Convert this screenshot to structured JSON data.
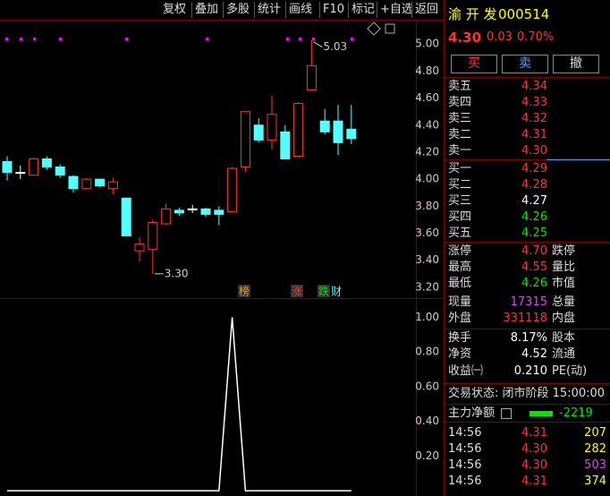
{
  "toolbar": [
    "复权",
    "叠加",
    "多股",
    "统计",
    "画线",
    "F10",
    "标记",
    "+自选",
    "返回"
  ],
  "chart_data": [
    {
      "type": "candlestick",
      "open": [
        4.13,
        4.05,
        4.03,
        4.15,
        4.09,
        4.02,
        3.93,
        4.0,
        3.93,
        3.86,
        3.47,
        3.48,
        3.67,
        3.77,
        3.78,
        3.78,
        3.77,
        3.76,
        4.09,
        4.4,
        4.29,
        4.35,
        4.17,
        4.66,
        4.43,
        4.43,
        4.37
      ],
      "high": [
        4.17,
        4.1,
        4.16,
        4.17,
        4.11,
        4.03,
        4.01,
        4.0,
        4.01,
        3.86,
        3.57,
        3.7,
        3.82,
        3.79,
        3.81,
        3.79,
        3.8,
        4.09,
        4.5,
        4.45,
        4.62,
        4.4,
        4.57,
        5.03,
        4.52,
        4.55,
        4.55
      ],
      "low": [
        3.99,
        4.0,
        4.03,
        4.07,
        4.01,
        3.9,
        3.92,
        3.94,
        3.89,
        3.58,
        3.39,
        3.3,
        3.66,
        3.73,
        3.75,
        3.72,
        3.66,
        3.75,
        4.05,
        4.27,
        4.22,
        4.15,
        4.16,
        4.66,
        4.33,
        4.18,
        4.26
      ],
      "close": [
        4.05,
        4.05,
        4.15,
        4.09,
        4.03,
        3.93,
        4.0,
        3.95,
        3.98,
        3.58,
        3.52,
        3.68,
        3.78,
        3.75,
        3.78,
        3.74,
        3.74,
        4.08,
        4.5,
        4.29,
        4.48,
        4.15,
        4.56,
        4.84,
        4.35,
        4.27,
        4.3
      ],
      "up_color": "#ff3232",
      "down_color": "#54ffff",
      "ylim": [
        3.12,
        5.18
      ],
      "yticks": [
        {
          "value": 5,
          "label": "5.00"
        },
        {
          "value": 4.8,
          "label": "4.80"
        },
        {
          "value": 4.6,
          "label": "4.60"
        },
        {
          "value": 4.4,
          "label": "4.40"
        },
        {
          "value": 4.2,
          "label": "4.20"
        },
        {
          "value": 4,
          "label": "4.00"
        },
        {
          "value": 3.8,
          "label": "3.80"
        },
        {
          "value": 3.6,
          "label": "3.60"
        },
        {
          "value": 3.4,
          "label": "3.40"
        },
        {
          "value": 3.2,
          "label": "3.20"
        }
      ],
      "annotations": [
        "5.03",
        "3.30"
      ],
      "markers": [
        "榜",
        "涨",
        "跌",
        "财"
      ]
    },
    {
      "type": "line",
      "color": "#ffffff",
      "values": [
        0,
        0,
        0,
        0,
        0,
        0,
        0,
        0,
        0,
        0,
        0,
        0,
        0,
        0,
        0,
        0,
        0,
        1,
        0,
        0,
        0,
        0,
        0,
        0,
        0,
        0,
        0
      ],
      "ylim": [
        -0.03,
        1.1
      ],
      "yticks": [
        {
          "value": 1,
          "label": "1.00"
        },
        {
          "value": 0.8,
          "label": "0.80"
        },
        {
          "value": 0.6,
          "label": "0.60"
        },
        {
          "value": 0.4,
          "label": "0.40"
        },
        {
          "value": 0.2,
          "label": "0.20"
        }
      ]
    }
  ],
  "quote": {
    "name": "渝 开 发",
    "code": "000514",
    "price": "4.30",
    "change": "0.03",
    "pct": "0.70%"
  },
  "actions": [
    "买",
    "卖",
    "撤"
  ],
  "order_book": [
    {
      "label": "卖五",
      "value": "4.34",
      "color": "#ff3232"
    },
    {
      "label": "卖四",
      "value": "4.33",
      "color": "#ff3232"
    },
    {
      "label": "卖三",
      "value": "4.32",
      "color": "#ff3232"
    },
    {
      "label": "卖二",
      "value": "4.31",
      "color": "#ff3232"
    },
    {
      "label": "卖一",
      "value": "4.30",
      "color": "#ff3232"
    },
    {
      "label": "买一",
      "value": "4.29",
      "color": "#ff3232"
    },
    {
      "label": "买二",
      "value": "4.28",
      "color": "#ff3232"
    },
    {
      "label": "买三",
      "value": "4.27",
      "color": "#ffffff"
    },
    {
      "label": "买四",
      "value": "4.26",
      "color": "#00e600"
    },
    {
      "label": "买五",
      "value": "4.25",
      "color": "#00e600"
    }
  ],
  "stats": [
    {
      "label": "涨停",
      "value": "4.70",
      "label2": "跌停",
      "color": "#ff3232"
    },
    {
      "label": "最高",
      "value": "4.55",
      "label2": "量比",
      "color": "#ff3232"
    },
    {
      "label": "最低",
      "value": "4.26",
      "label2": "市值",
      "color": "#00e600"
    },
    {
      "label": "现量",
      "value": "17315",
      "label2": "总量",
      "color": "#e040ff"
    },
    {
      "label": "外盘",
      "value": "331118",
      "label2": "内盘",
      "color": "#ff3232"
    },
    {
      "label": "换手",
      "value": "8.17%",
      "label2": "股本",
      "color": "#ffffff"
    },
    {
      "label": "净资",
      "value": "4.52",
      "label2": "流通",
      "color": "#ffffff"
    },
    {
      "label": "收益㈠",
      "value": "0.210",
      "label2": "PE(动)",
      "color": "#ffffff"
    }
  ],
  "status": "交易状态: 闭市阶段 15:00:00",
  "main_net": {
    "label": "主力净额",
    "value": "-2219"
  },
  "trades": [
    {
      "time": "14:56",
      "price": "4.31",
      "volume": "207",
      "price_color": "#ff3232",
      "volume_color": "#ffff00"
    },
    {
      "time": "14:56",
      "price": "4.30",
      "volume": "282",
      "price_color": "#ff3232",
      "volume_color": "#ffff00"
    },
    {
      "time": "14:56",
      "price": "4.30",
      "volume": "503",
      "price_color": "#ff3232",
      "volume_color": "#e040ff"
    },
    {
      "time": "14:56",
      "price": "4.31",
      "volume": "374",
      "price_color": "#ff3232",
      "volume_color": "#ffff00"
    }
  ]
}
